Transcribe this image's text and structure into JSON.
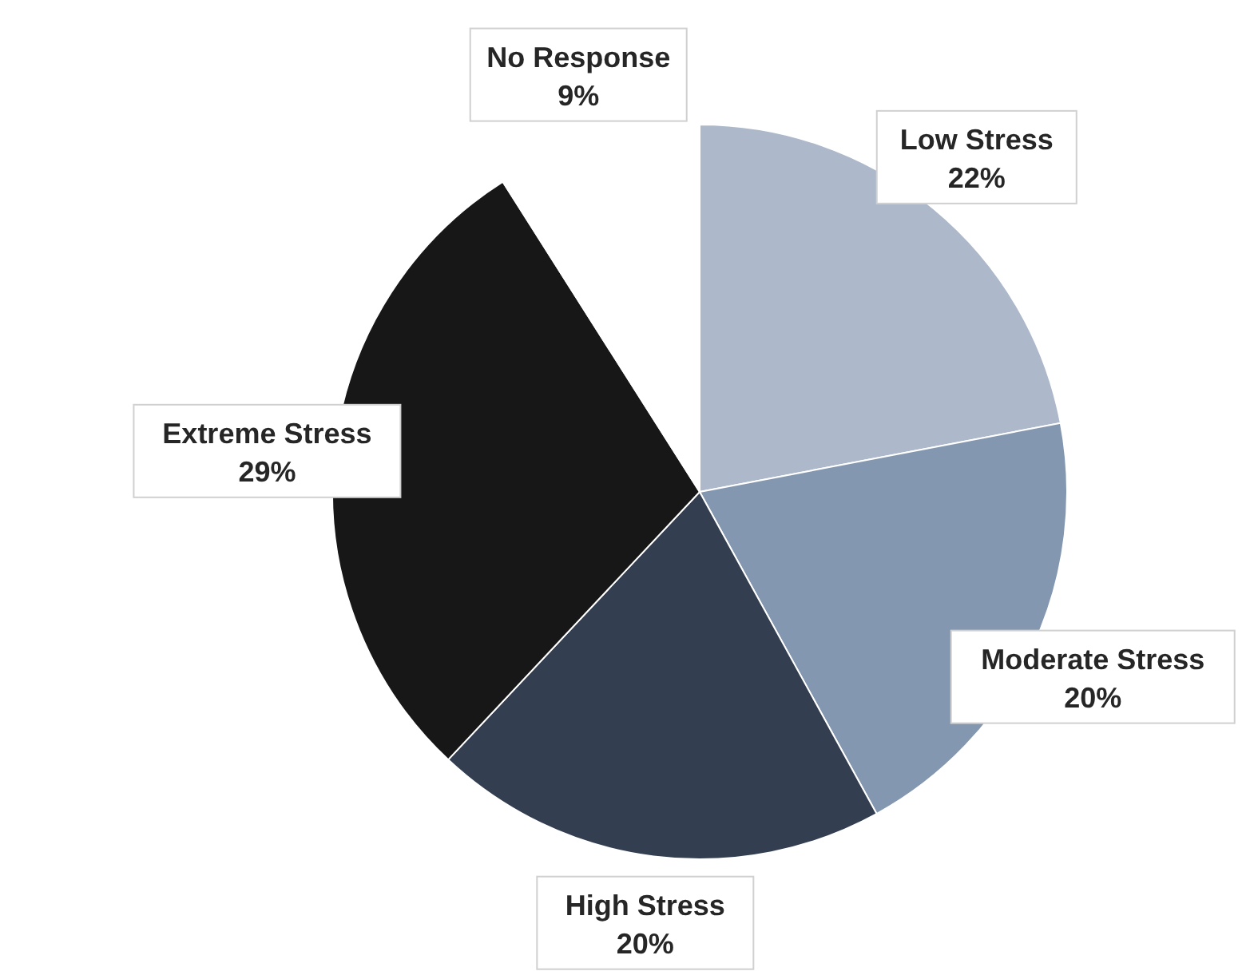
{
  "chart_data": {
    "type": "pie",
    "categories": [
      "Low Stress",
      "Moderate Stress",
      "High Stress",
      "Extreme Stress",
      "No Response"
    ],
    "values": [
      22,
      20,
      20,
      29,
      9
    ],
    "colors": [
      "#adb9ca",
      "#8497b0",
      "#333f50",
      "#171717",
      "#ffffff"
    ],
    "value_labels": [
      "22%",
      "20%",
      "20%",
      "29%",
      "9%"
    ]
  }
}
